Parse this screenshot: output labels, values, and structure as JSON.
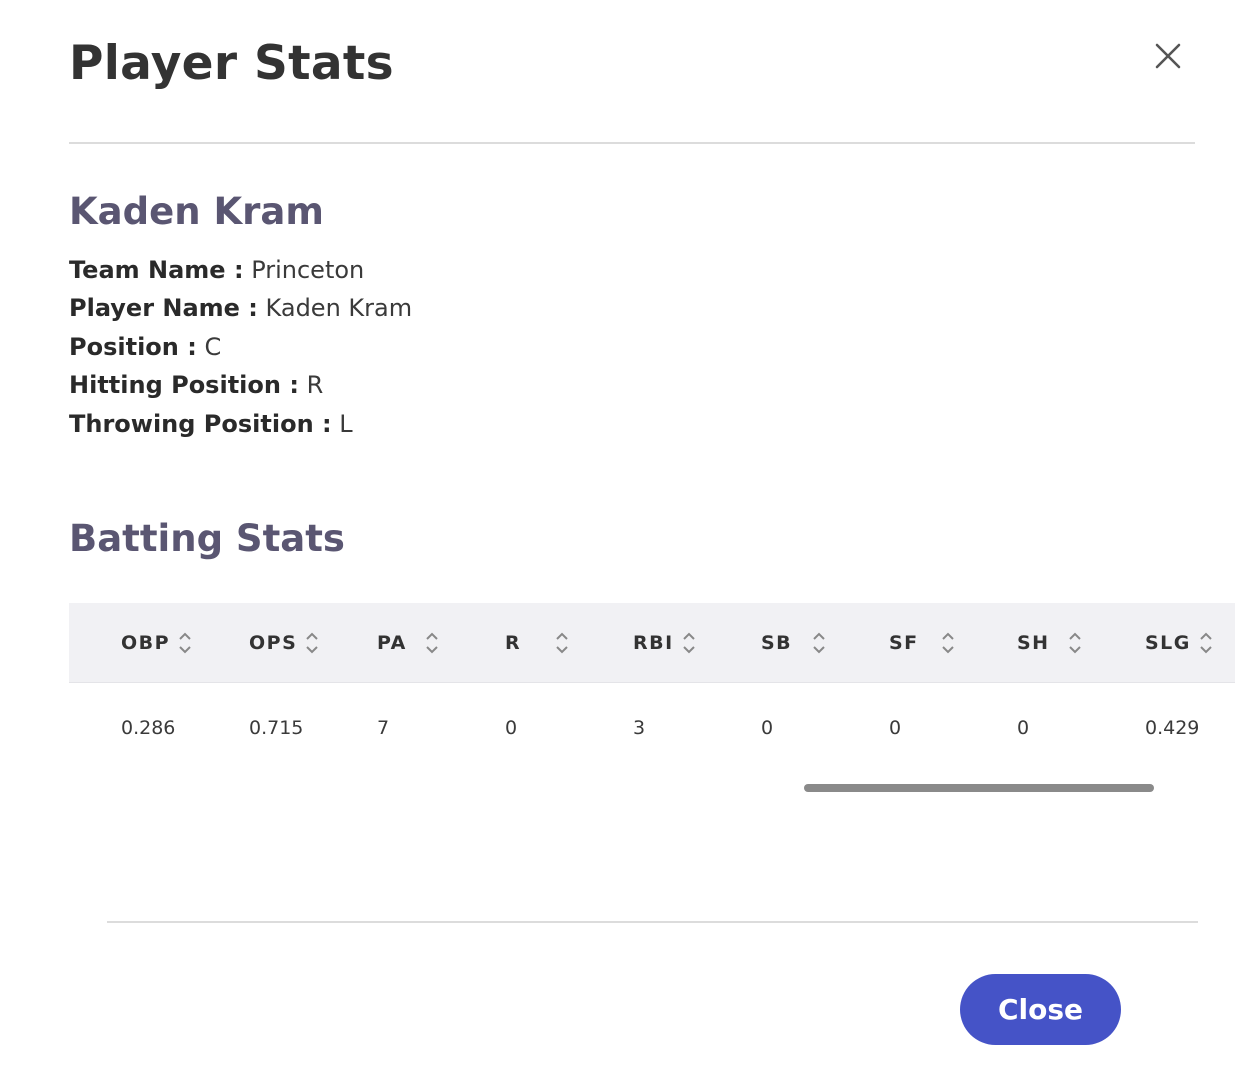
{
  "modal": {
    "title": "Player Stats",
    "close_icon": "close-icon",
    "close_button_label": "Close"
  },
  "player": {
    "heading": "Kaden Kram",
    "info": [
      {
        "label": "Team Name :",
        "value": "Princeton"
      },
      {
        "label": "Player Name :",
        "value": "Kaden Kram"
      },
      {
        "label": "Position :",
        "value": "C"
      },
      {
        "label": "Hitting Position :",
        "value": "R"
      },
      {
        "label": "Throwing Position :",
        "value": "L"
      }
    ]
  },
  "batting": {
    "heading": "Batting Stats",
    "columns": [
      "OBP",
      "OPS",
      "PA",
      "R",
      "RBI",
      "SB",
      "SF",
      "SH",
      "SLG"
    ],
    "rows": [
      [
        "0.286",
        "0.715",
        "7",
        "0",
        "3",
        "0",
        "0",
        "0",
        "0.429"
      ]
    ],
    "sort_icon": "sort-icon"
  },
  "colors": {
    "accent": "#4553c7",
    "heading": "#5a5672",
    "header_bg": "#f1f1f4"
  }
}
